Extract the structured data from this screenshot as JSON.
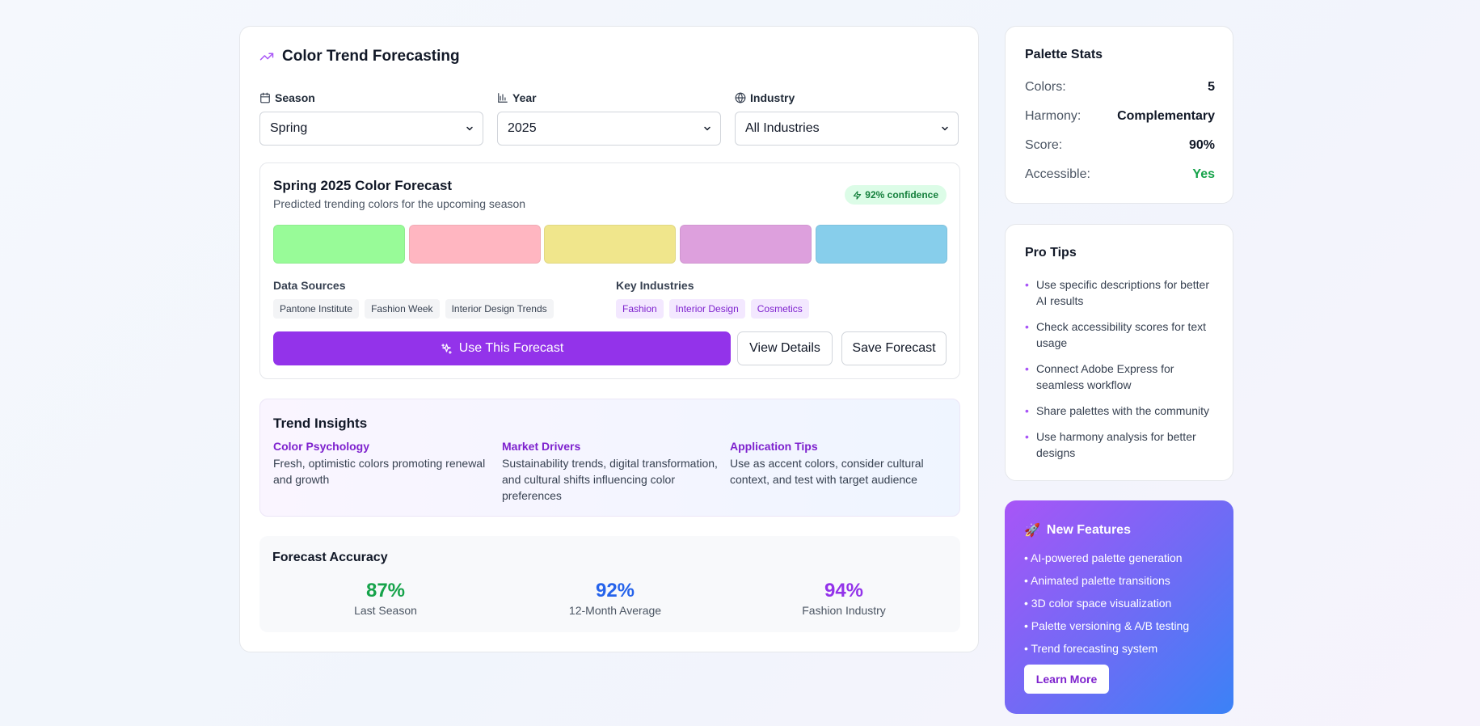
{
  "main": {
    "title": "Color Trend Forecasting",
    "fields": {
      "season": {
        "label": "Season",
        "value": "Spring"
      },
      "year": {
        "label": "Year",
        "value": "2025"
      },
      "industry": {
        "label": "Industry",
        "value": "All Industries"
      }
    },
    "forecast": {
      "title": "Spring 2025 Color Forecast",
      "subtitle": "Predicted trending colors for the upcoming season",
      "confidence": "92% confidence",
      "swatches": [
        "#98fb98",
        "#ffb6c1",
        "#f0e68c",
        "#dda0dd",
        "#87ceeb"
      ],
      "data_sources_label": "Data Sources",
      "data_sources": [
        "Pantone Institute",
        "Fashion Week",
        "Interior Design Trends"
      ],
      "key_industries_label": "Key Industries",
      "key_industries": [
        "Fashion",
        "Interior Design",
        "Cosmetics"
      ],
      "use_button": "Use This Forecast",
      "details_button": "View Details",
      "save_button": "Save Forecast"
    },
    "insights": {
      "title": "Trend Insights",
      "columns": [
        {
          "heading": "Color Psychology",
          "text": "Fresh, optimistic colors promoting renewal and growth"
        },
        {
          "heading": "Market Drivers",
          "text": "Sustainability trends, digital transformation, and cultural shifts influencing color preferences"
        },
        {
          "heading": "Application Tips",
          "text": "Use as accent colors, consider cultural context, and test with target audience"
        }
      ]
    },
    "accuracy": {
      "title": "Forecast Accuracy",
      "items": [
        {
          "value": "87%",
          "label": "Last Season",
          "color": "#16a34a"
        },
        {
          "value": "92%",
          "label": "12-Month Average",
          "color": "#2563eb"
        },
        {
          "value": "94%",
          "label": "Fashion Industry",
          "color": "#9333ea"
        }
      ]
    }
  },
  "stats": {
    "title": "Palette Stats",
    "rows": [
      {
        "key": "Colors:",
        "value": "5"
      },
      {
        "key": "Harmony:",
        "value": "Complementary"
      },
      {
        "key": "Score:",
        "value": "90%"
      },
      {
        "key": "Accessible:",
        "value": "Yes",
        "color": "#16a34a"
      }
    ]
  },
  "tips": {
    "title": "Pro Tips",
    "items": [
      "Use specific descriptions for better AI results",
      "Check accessibility scores for text usage",
      "Connect Adobe Express for seamless workflow",
      "Share palettes with the community",
      "Use harmony analysis for better designs"
    ]
  },
  "features": {
    "emoji": "🚀",
    "title": "New Features",
    "items": [
      "• AI-powered palette generation",
      "• Animated palette transitions",
      "• 3D color space visualization",
      "• Palette versioning & A/B testing",
      "• Trend forecasting system"
    ],
    "button": "Learn More"
  }
}
